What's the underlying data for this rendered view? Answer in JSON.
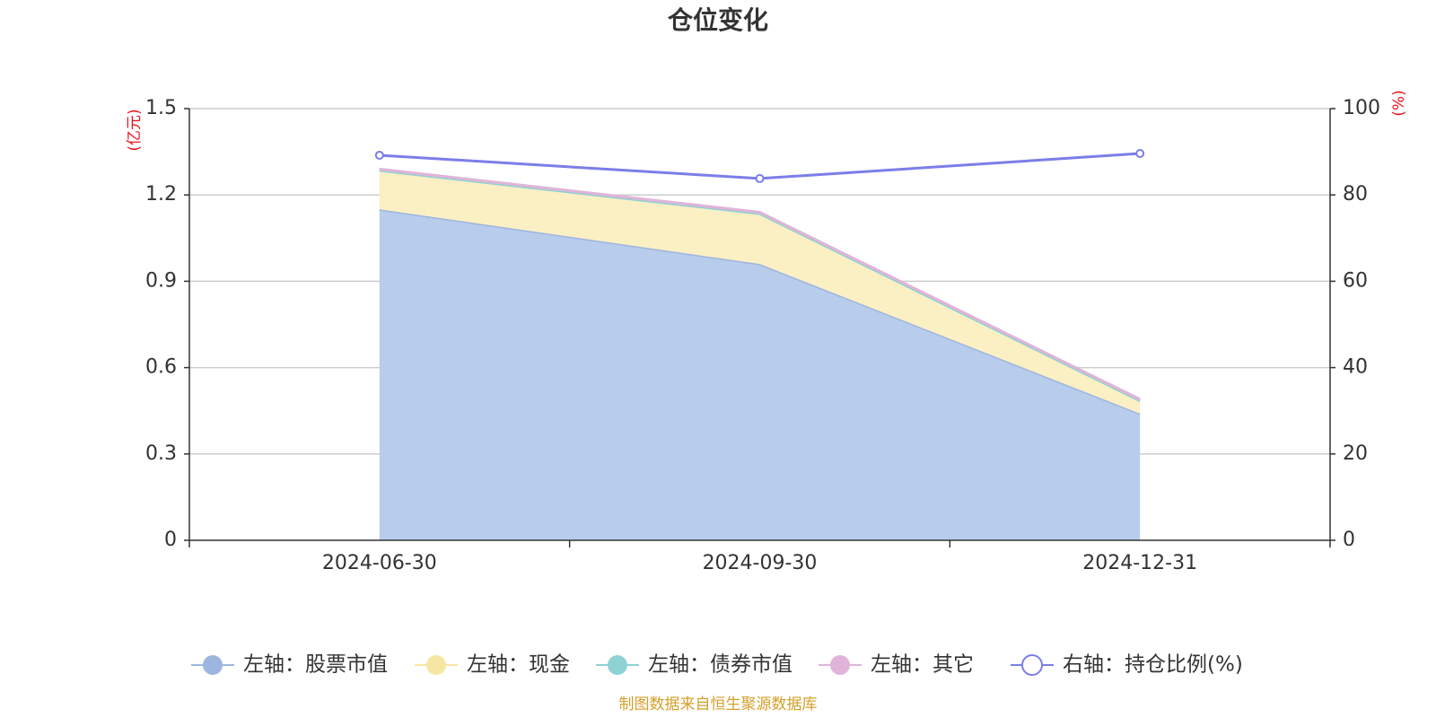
{
  "chart_data": {
    "type": "area",
    "title": "仓位变化",
    "categories": [
      "2024-06-30",
      "2024-09-30",
      "2024-12-31"
    ],
    "left_axis": {
      "unit": "(亿元)",
      "ylim": [
        0,
        1.5
      ],
      "ticks": [
        "0",
        "0.3",
        "0.6",
        "0.9",
        "1.2",
        "1.5"
      ]
    },
    "right_axis": {
      "unit": "(%)",
      "ylim": [
        0,
        100
      ],
      "ticks": [
        "0",
        "20",
        "40",
        "60",
        "80",
        "100"
      ]
    },
    "series": [
      {
        "name": "左轴：股票市值",
        "axis": "left",
        "type": "area",
        "values": [
          1.15,
          0.96,
          0.44
        ],
        "color": "#9db6e0",
        "fill": "#b8cceb"
      },
      {
        "name": "左轴：现金",
        "axis": "left",
        "type": "area",
        "values": [
          0.135,
          0.175,
          0.045
        ],
        "color": "#f6e6a3",
        "fill": "#fbefc4"
      },
      {
        "name": "左轴：债券市值",
        "axis": "left",
        "type": "area",
        "values": [
          0,
          0,
          0
        ],
        "color": "#8fd2d3",
        "fill": "#8fd2d3"
      },
      {
        "name": "左轴：其它",
        "axis": "left",
        "type": "area",
        "values": [
          0.005,
          0.005,
          0.005
        ],
        "color": "#e0b4d8",
        "fill": "#e0b4d8"
      },
      {
        "name": "右轴：持仓比例(%)",
        "axis": "right",
        "type": "line",
        "values": [
          89.2,
          83.8,
          89.6
        ],
        "color": "#7b7ee8"
      }
    ],
    "grid": true,
    "legend_position": "bottom",
    "source": "制图数据来自恒生聚源数据库"
  }
}
